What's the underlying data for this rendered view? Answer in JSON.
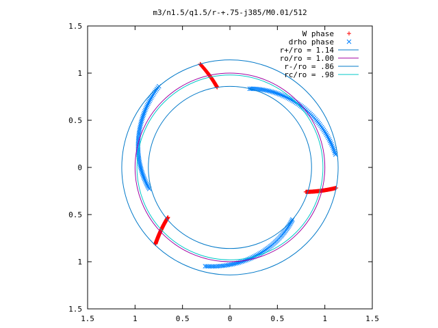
{
  "chart_data": {
    "type": "scatter",
    "title": "m3/n1.5/q1.5/r-+.75-j385/M0.01/512",
    "xlim": [
      -1.5,
      1.5
    ],
    "ylim": [
      -1.5,
      1.5
    ],
    "x_ticks": [
      -1.5,
      -1,
      -0.5,
      0,
      0.5,
      1,
      1.5
    ],
    "y_ticks": [
      -1.5,
      -1,
      -0.5,
      0,
      0.5,
      1,
      1.5
    ],
    "x_tick_labels": [
      "1.5",
      "1",
      "0.5",
      "0",
      "0.5",
      "1",
      "1.5"
    ],
    "y_tick_labels": [
      "1.5",
      "1",
      "0.5",
      "0",
      "0.5",
      "1",
      "1.5"
    ],
    "grid": false,
    "legend_position": "top-right",
    "series": [
      {
        "name": "W phase",
        "kind": "points",
        "marker": "plus",
        "color": "#ff0000",
        "arcs": [
          {
            "radius_start": 1.14,
            "radius_end": 0.86,
            "angle_start_deg": 106,
            "angle_end_deg": 99
          },
          {
            "radius_start": 1.14,
            "radius_end": 0.84,
            "angle_start_deg": -11,
            "angle_end_deg": -18
          },
          {
            "radius_start": 1.13,
            "radius_end": 0.84,
            "angle_start_deg": -134,
            "angle_end_deg": -141
          }
        ]
      },
      {
        "name": "drho phase",
        "kind": "points",
        "marker": "cross",
        "color": "#0080ff",
        "arcs": [
          {
            "radius_start": 0.86,
            "radius_end": 1.12,
            "angle_start_deg": 76,
            "angle_end_deg": 7
          },
          {
            "radius_start": 0.86,
            "radius_end": 1.08,
            "angle_start_deg": -40,
            "angle_end_deg": -104
          },
          {
            "radius_start": 0.88,
            "radius_end": 1.14,
            "angle_start_deg": -165,
            "angle_end_deg": -229
          }
        ]
      },
      {
        "name": "r+/ro = 1.14",
        "kind": "circle",
        "radius": 1.14,
        "color": "#0078c8"
      },
      {
        "name": "ro/ro = 1.00",
        "kind": "circle",
        "radius": 1.0,
        "color": "#a000a0"
      },
      {
        "name": "r-/ro = .86",
        "kind": "circle",
        "radius": 0.86,
        "color": "#0078c8"
      },
      {
        "name": "rc/ro = .98",
        "kind": "circle",
        "radius": 0.98,
        "color": "#00c8c8"
      }
    ]
  }
}
